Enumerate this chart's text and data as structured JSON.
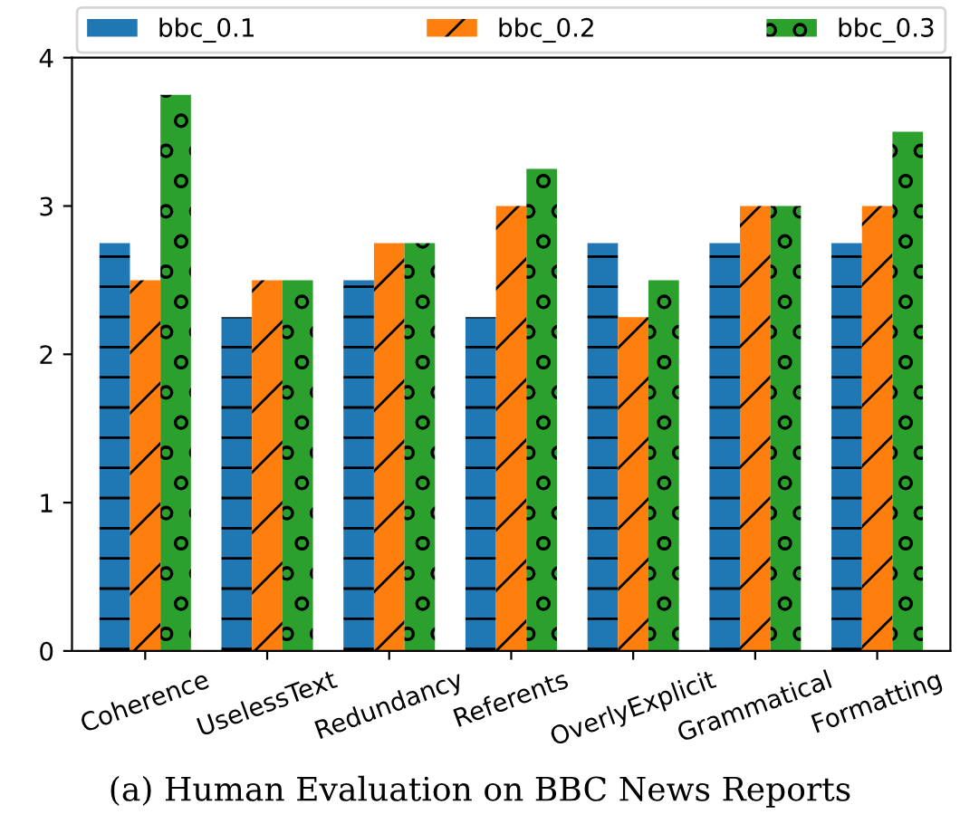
{
  "chart_data": {
    "type": "bar",
    "title": "(a) Human Evaluation on BBC News Reports",
    "categories": [
      "Coherence",
      "UselessText",
      "Redundancy",
      "Referents",
      "OverlyExplicit",
      "Grammatical",
      "Formatting"
    ],
    "series": [
      {
        "name": "bbc_0.1",
        "color": "#1f77b4",
        "values": [
          2.75,
          2.25,
          2.5,
          2.25,
          2.75,
          2.75,
          2.75
        ]
      },
      {
        "name": "bbc_0.2",
        "color": "#ff7f0e",
        "values": [
          2.5,
          2.5,
          2.75,
          3.0,
          2.25,
          3.0,
          3.0
        ]
      },
      {
        "name": "bbc_0.3",
        "color": "#2ca02c",
        "values": [
          3.75,
          2.5,
          2.75,
          3.25,
          2.5,
          3.0,
          3.5
        ]
      }
    ],
    "ylim": [
      0,
      4
    ],
    "yticks": [
      0,
      1,
      2,
      3,
      4
    ],
    "grid": false,
    "legend": "top"
  }
}
